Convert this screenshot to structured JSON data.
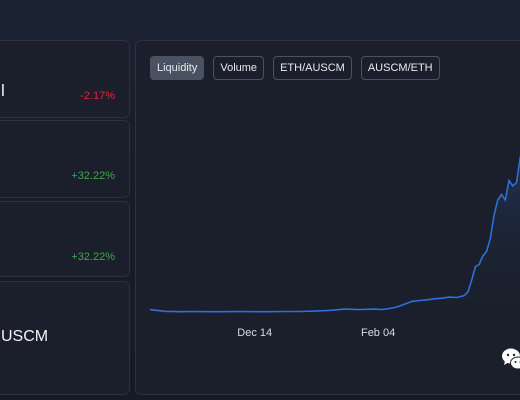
{
  "stats": [
    {
      "value": "l",
      "change": "-2.17%",
      "change_color": "#e0263a"
    },
    {
      "value": "",
      "change": "+32.22%",
      "change_color": "#3fa84a"
    },
    {
      "value": "",
      "change": "+32.22%",
      "change_color": "#3fa84a"
    },
    {
      "value": "USCM",
      "change": "",
      "change_color": "#3fa84a"
    }
  ],
  "chart": {
    "tabs": [
      {
        "label": "Liquidity",
        "active": true
      },
      {
        "label": "Volume",
        "active": false
      },
      {
        "label": "ETH/AUSCM",
        "active": false
      },
      {
        "label": "AUSCM/ETH",
        "active": false
      }
    ]
  },
  "chart_data": {
    "type": "area",
    "x_tick_labels": [
      "Dec 14",
      "Feb 04"
    ],
    "x": [
      0,
      4,
      8,
      12,
      16,
      20,
      24,
      28,
      32,
      36,
      40,
      44,
      48,
      52,
      56,
      60,
      62,
      64,
      66,
      68,
      70,
      72,
      74,
      76,
      78,
      80,
      82,
      84,
      85,
      86,
      87,
      88,
      89,
      90,
      91,
      92,
      93,
      94,
      95,
      96,
      97,
      98,
      99,
      100
    ],
    "values": [
      3.0,
      2.2,
      2.0,
      2.1,
      2.0,
      2.0,
      2.1,
      2.0,
      2.0,
      2.1,
      2.1,
      2.3,
      2.6,
      3.2,
      3.0,
      3.2,
      3.0,
      3.5,
      4.2,
      5.5,
      6.8,
      7.2,
      7.5,
      8.0,
      8.3,
      8.8,
      8.6,
      9.5,
      11.2,
      16.5,
      23.0,
      24.0,
      28.0,
      30.0,
      36.0,
      47.0,
      54.0,
      56.5,
      54.0,
      63.0,
      60.5,
      62.0,
      74.0,
      76.0
    ],
    "ylim": [
      0,
      100
    ],
    "line_color": "#2e6fd8",
    "fill_color": "#1c2c4a",
    "grid": false
  },
  "watermark": {
    "icon": "wechat-icon"
  }
}
